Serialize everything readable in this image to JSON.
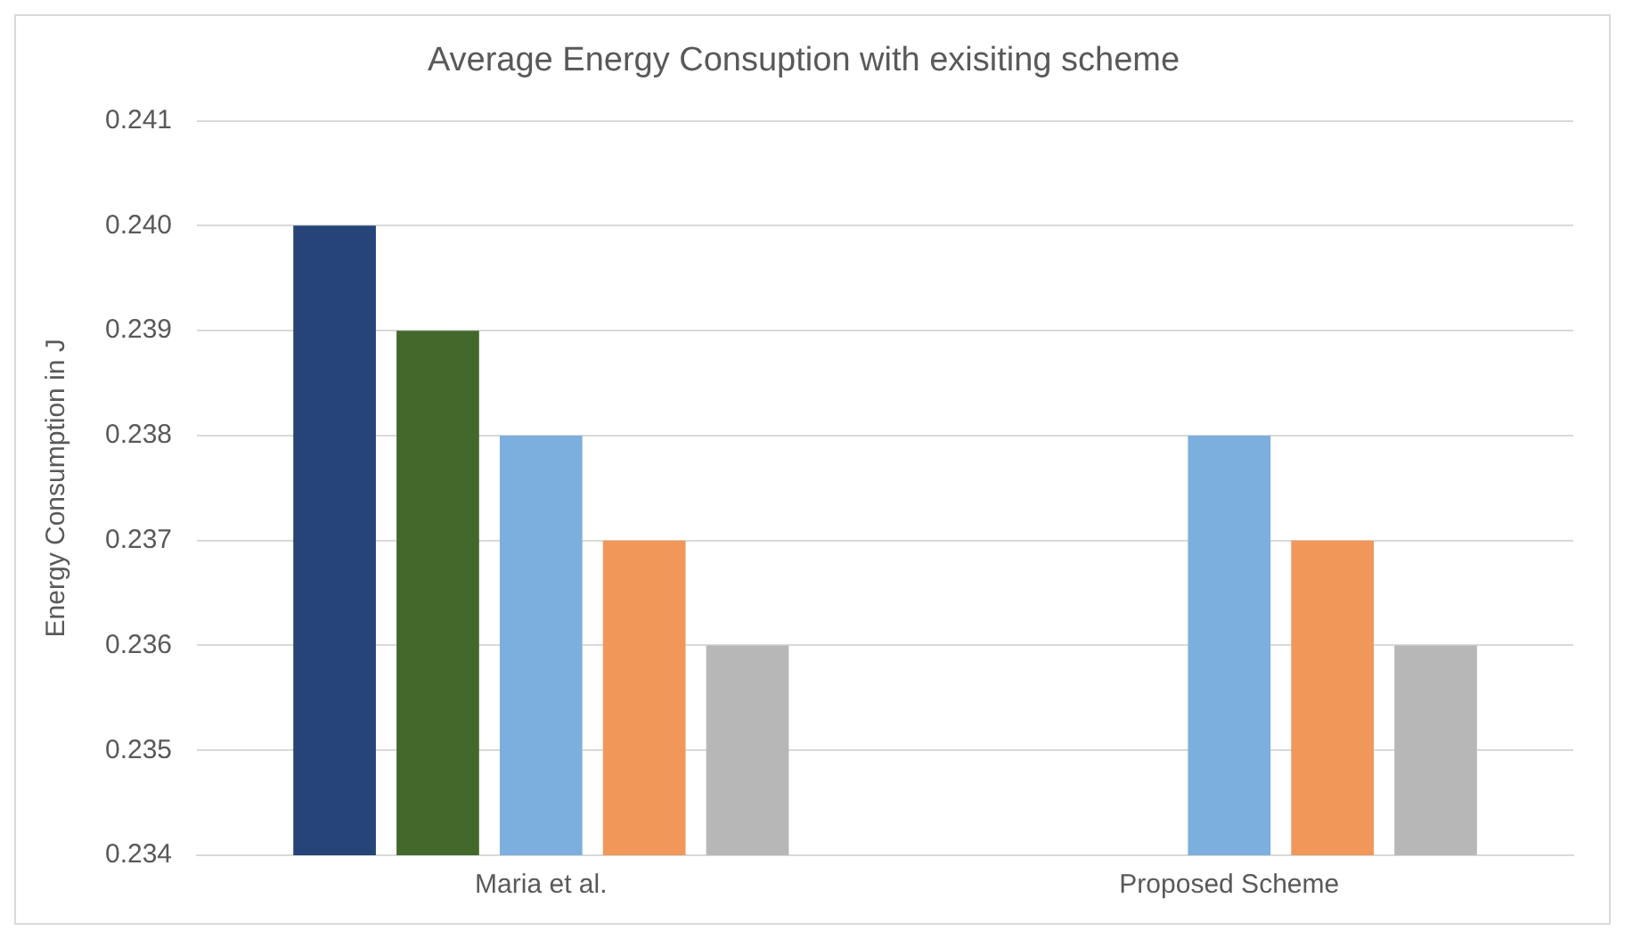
{
  "chart_data": {
    "type": "bar",
    "title": "Average Energy Consuption with exisiting scheme",
    "ylabel": "Energy Consumption in J",
    "categories": [
      "Maria et al.",
      "Proposed Scheme"
    ],
    "series": [
      {
        "color": "#264478",
        "values": [
          0.24,
          null
        ]
      },
      {
        "color": "#43682b",
        "values": [
          0.239,
          null
        ]
      },
      {
        "color": "#7cafdd",
        "values": [
          0.238,
          0.238
        ]
      },
      {
        "color": "#f1975a",
        "values": [
          0.237,
          0.237
        ]
      },
      {
        "color": "#b7b7b7",
        "values": [
          0.236,
          0.236
        ]
      }
    ],
    "ylim": [
      0.234,
      0.241
    ],
    "yticks": [
      0.234,
      0.235,
      0.236,
      0.237,
      0.238,
      0.239,
      {
        "value": 0.24,
        "label": "0.240"
      },
      0.241
    ],
    "grid": "y",
    "legend": false
  }
}
